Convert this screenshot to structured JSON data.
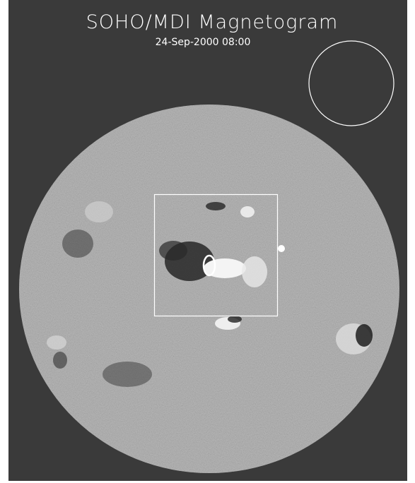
{
  "header": {
    "title": "SOHO/MDI Magnetogram",
    "date": "24-Sep-2000 08:00"
  }
}
